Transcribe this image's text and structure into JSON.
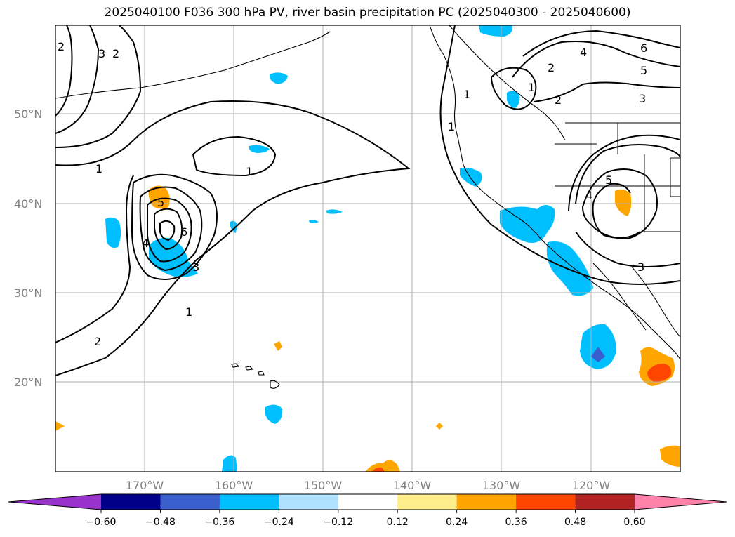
{
  "title": "2025040100 F036 300 hPa PV, river basin precipitation PC (2025040300 - 2025040600)",
  "lat_labels": [
    "50°N",
    "40°N",
    "30°N",
    "20°N"
  ],
  "lon_labels": [
    "170°W",
    "160°W",
    "150°W",
    "140°W",
    "130°W",
    "120°W"
  ],
  "colorbar": {
    "ticks": [
      "−0.60",
      "−0.48",
      "−0.36",
      "−0.24",
      "−0.12",
      "0.12",
      "0.24",
      "0.36",
      "0.48",
      "0.60"
    ],
    "colors": [
      "#9932cc",
      "#00008b",
      "#3a5fcd",
      "#00bfff",
      "#b0e2ff",
      "#ffffff",
      "#ffec8b",
      "#ffa500",
      "#ff4500",
      "#b22222",
      "#ff82ab"
    ]
  },
  "contour_labels": [
    "1",
    "1",
    "1",
    "1",
    "1",
    "2",
    "2",
    "3",
    "2",
    "4",
    "5",
    "6",
    "3",
    "2",
    "4",
    "6",
    "5",
    "3",
    "2",
    "1",
    "4",
    "5",
    "3"
  ],
  "colors": {
    "neg_light": "#b0e2ff",
    "neg_mid": "#00bfff",
    "neg_dark": "#3a5fcd",
    "pos_light": "#ffec8b",
    "pos_mid": "#ffa500",
    "pos_dark": "#ff4500"
  }
}
